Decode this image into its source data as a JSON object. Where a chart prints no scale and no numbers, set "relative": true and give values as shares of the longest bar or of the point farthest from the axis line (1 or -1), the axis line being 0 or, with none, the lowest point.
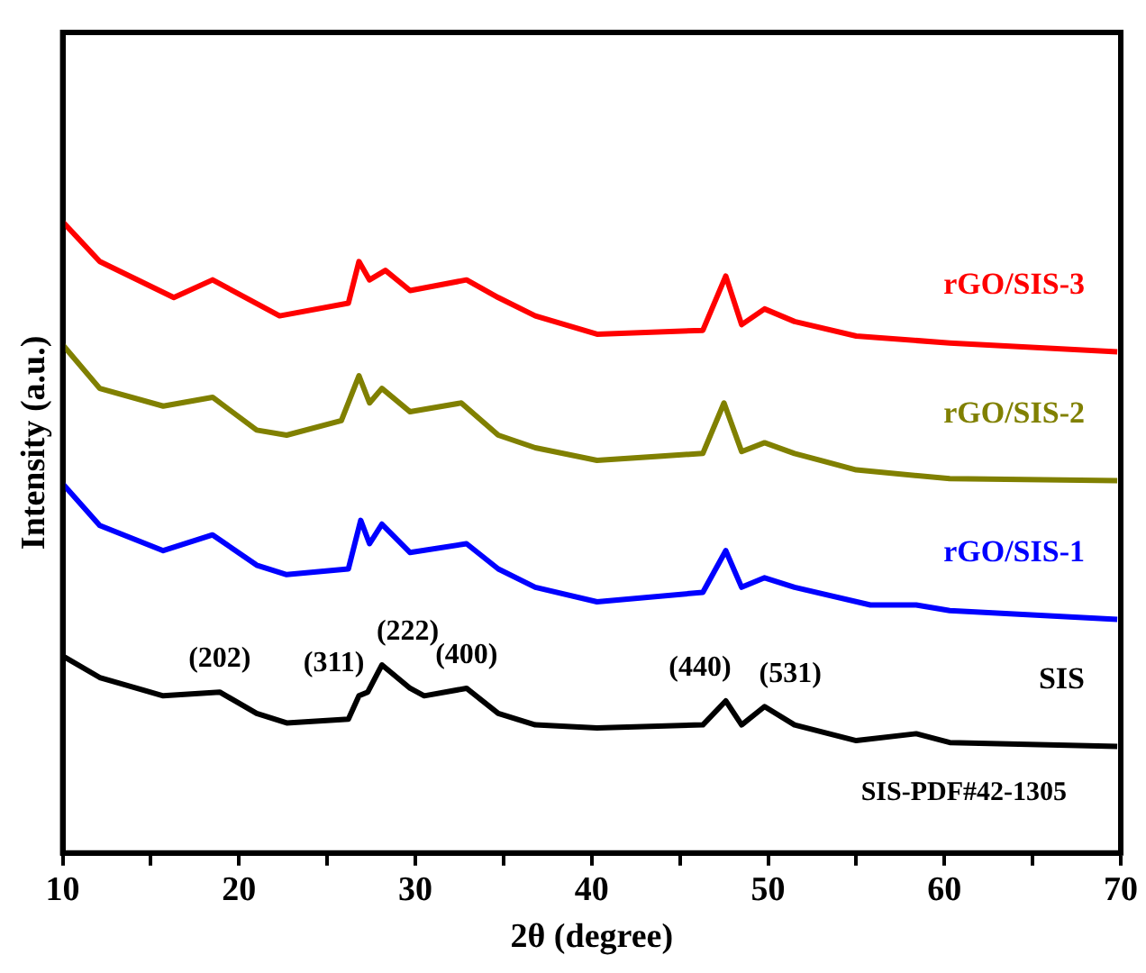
{
  "chart_data": {
    "type": "line",
    "relative": true,
    "xlabel": "2θ (degree)",
    "ylabel": "Intensity (a.u.)",
    "xlim": [
      10,
      70
    ],
    "xticks": [
      10,
      {
        "value": 15,
        "label": null
      },
      20,
      {
        "value": 25,
        "label": null
      },
      30,
      {
        "value": 35,
        "label": null
      },
      40,
      {
        "value": 45,
        "label": null
      },
      50,
      {
        "value": 55,
        "label": null
      },
      60,
      {
        "value": 65,
        "label": null
      },
      70
    ],
    "legend": false,
    "grid": false,
    "marker": "none",
    "line_style": "solid",
    "series": [
      {
        "name": "SIS",
        "color": "#000000",
        "x": [
          10,
          12.1,
          15.7,
          18.9,
          21.0,
          22.7,
          26.2,
          26.8,
          27.3,
          28.1,
          29.7,
          30.5,
          32.9,
          34.7,
          36.8,
          40.3,
          46.3,
          47.6,
          48.5,
          49.8,
          51.5,
          55.0,
          58.4,
          60.3,
          69.8
        ],
        "values": [
          0.312,
          0.278,
          0.249,
          0.255,
          0.221,
          0.206,
          0.212,
          0.249,
          0.255,
          0.298,
          0.261,
          0.249,
          0.261,
          0.221,
          0.203,
          0.198,
          0.203,
          0.241,
          0.203,
          0.232,
          0.203,
          0.178,
          0.189,
          0.175,
          0.169
        ]
      },
      {
        "name": "rGO/SIS-1",
        "color": "#0000ff",
        "x": [
          10,
          12.1,
          15.7,
          18.5,
          21.0,
          22.7,
          26.2,
          26.9,
          27.4,
          28.1,
          29.7,
          32.9,
          34.7,
          36.8,
          40.3,
          46.3,
          47.6,
          48.5,
          49.8,
          51.5,
          55.8,
          58.4,
          60.3,
          69.8
        ],
        "values": [
          0.585,
          0.519,
          0.479,
          0.504,
          0.456,
          0.441,
          0.45,
          0.527,
          0.49,
          0.521,
          0.476,
          0.49,
          0.45,
          0.421,
          0.398,
          0.413,
          0.479,
          0.421,
          0.436,
          0.421,
          0.393,
          0.393,
          0.384,
          0.37
        ]
      },
      {
        "name": "rGO/SIS-2",
        "color": "#808000",
        "x": [
          10,
          12.1,
          15.7,
          18.5,
          21.0,
          22.7,
          25.8,
          26.8,
          27.4,
          28.1,
          29.7,
          32.6,
          34.7,
          36.8,
          40.3,
          46.3,
          47.5,
          48.5,
          49.8,
          51.5,
          55.0,
          60.3,
          69.8
        ],
        "values": [
          0.805,
          0.736,
          0.708,
          0.722,
          0.67,
          0.662,
          0.685,
          0.756,
          0.713,
          0.736,
          0.699,
          0.713,
          0.662,
          0.642,
          0.622,
          0.633,
          0.713,
          0.636,
          0.65,
          0.633,
          0.607,
          0.593,
          0.59
        ]
      },
      {
        "name": "rGO/SIS-3",
        "color": "#ff0000",
        "x": [
          10,
          12.1,
          16.3,
          18.5,
          22.3,
          26.2,
          26.8,
          27.4,
          28.3,
          29.7,
          32.9,
          34.7,
          36.8,
          40.3,
          46.3,
          47.6,
          48.5,
          49.8,
          51.5,
          55.0,
          60.3,
          69.8
        ],
        "values": [
          1.0,
          0.937,
          0.88,
          0.908,
          0.851,
          0.871,
          0.937,
          0.908,
          0.923,
          0.891,
          0.908,
          0.88,
          0.851,
          0.822,
          0.828,
          0.914,
          0.837,
          0.862,
          0.842,
          0.819,
          0.808,
          0.794
        ]
      }
    ],
    "annotations": [
      {
        "text": "(202)",
        "x": 18.9,
        "y": 0.255
      },
      {
        "text": "(311)",
        "x": 26.8,
        "y": 0.249
      },
      {
        "text": "(222)",
        "x": 28.1,
        "y": 0.298
      },
      {
        "text": "(400)",
        "x": 32.9,
        "y": 0.261
      },
      {
        "text": "(440)",
        "x": 47.6,
        "y": 0.241
      },
      {
        "text": "(531)",
        "x": 49.8,
        "y": 0.232
      },
      "SIS-PDF#42-1305"
    ]
  }
}
